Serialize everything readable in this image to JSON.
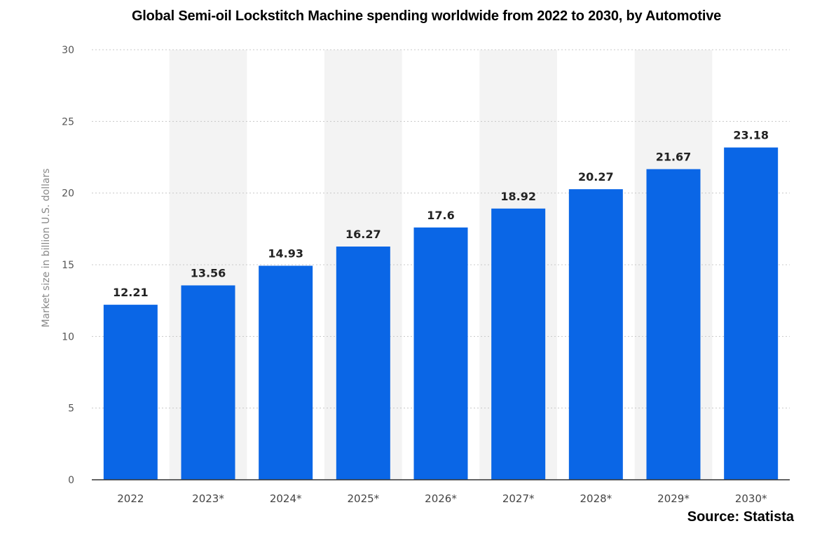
{
  "header": {
    "title": "Global Semi-oil Lockstitch Machine spending worldwide from 2022 to 2030, by Automotive"
  },
  "footer": {
    "source": "Source: Statista"
  },
  "chart_data": {
    "type": "bar",
    "title": "Global Semi-oil Lockstitch Machine spending worldwide from 2022 to 2030, by Automotive",
    "xlabel": "",
    "ylabel": "Market size in billion U.S. dollars",
    "categories": [
      "2022",
      "2023*",
      "2024*",
      "2025*",
      "2026*",
      "2027*",
      "2028*",
      "2029*",
      "2030*"
    ],
    "values": [
      12.21,
      13.56,
      14.93,
      16.27,
      17.6,
      18.92,
      20.27,
      21.67,
      23.18
    ],
    "value_labels": [
      "12.21",
      "13.56",
      "14.93",
      "16.27",
      "17.6",
      "18.92",
      "20.27",
      "21.67",
      "23.18"
    ],
    "ylim": [
      0,
      30
    ],
    "yticks": [
      0,
      5,
      10,
      15,
      20,
      25,
      30
    ],
    "grid": true,
    "bar_color": "#0a66e6",
    "band_color": "#f3f3f3",
    "grid_color": "#c8c8c8"
  }
}
